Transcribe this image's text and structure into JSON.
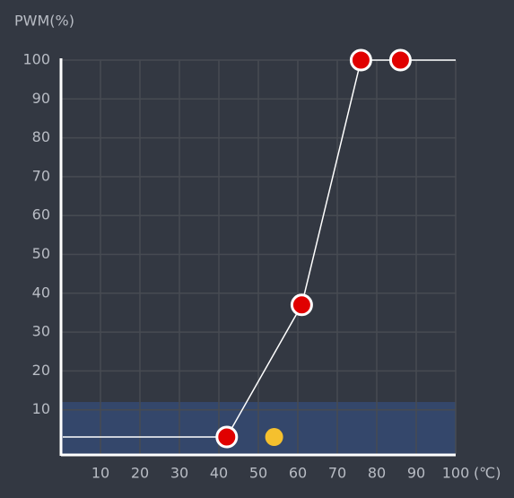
{
  "chart_data": {
    "type": "line",
    "y_label": "PWM(%)",
    "x_label": "(℃)",
    "xlim": [
      0,
      100
    ],
    "ylim": [
      0,
      100
    ],
    "xticks": [
      10,
      20,
      30,
      40,
      50,
      60,
      70,
      80,
      90,
      100
    ],
    "yticks": [
      10,
      20,
      30,
      40,
      50,
      60,
      70,
      80,
      90,
      100
    ],
    "grid": true,
    "band": [
      0,
      12
    ],
    "band_color": "#34476b",
    "x": [
      42,
      61,
      76,
      86
    ],
    "series": [
      {
        "color": "#e00000",
        "values": [
          3,
          37,
          100,
          100
        ]
      }
    ],
    "current": {
      "x": 54,
      "y": 3,
      "color": "#f5c02e"
    }
  }
}
